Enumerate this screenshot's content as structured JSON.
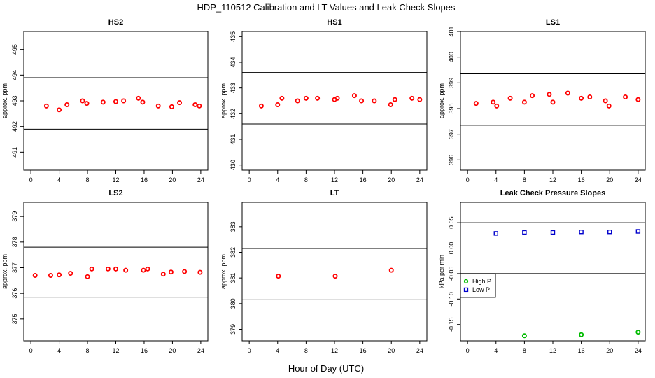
{
  "figure": {
    "title": "HDP_110512  Calibration and LT Values and Leak Check Slopes",
    "xlabel": "Hour of Day (UTC)"
  },
  "colors": {
    "points": "#ff0000",
    "high_p": "#00bb00",
    "low_p": "#0000cc",
    "frame": "#000000"
  },
  "chart_data": [
    {
      "type": "scatter",
      "title": "HS2",
      "ylabel": "approx. ppm",
      "xlim": [
        -1,
        25
      ],
      "ylim": [
        490.3,
        495.7
      ],
      "xticks": [
        0,
        4,
        8,
        12,
        16,
        20,
        24
      ],
      "yticks": [
        491,
        492,
        493,
        494,
        495
      ],
      "hlines": [
        493.9,
        491.9
      ],
      "series": [
        {
          "marker": "circle",
          "color": "#ff0000",
          "x": [
            2.2,
            4.0,
            5.1,
            7.3,
            7.9,
            10.2,
            12.0,
            13.1,
            15.2,
            15.8,
            18.0,
            19.9,
            21.0,
            23.2,
            23.8
          ],
          "y": [
            492.8,
            492.65,
            492.85,
            493.0,
            492.9,
            492.95,
            492.97,
            493.0,
            493.1,
            492.95,
            492.8,
            492.77,
            492.93,
            492.85,
            492.8
          ]
        }
      ]
    },
    {
      "type": "scatter",
      "title": "HS1",
      "ylabel": "approx. ppm",
      "xlim": [
        -1,
        25
      ],
      "ylim": [
        429.8,
        435.2
      ],
      "xticks": [
        0,
        4,
        8,
        12,
        16,
        20,
        24
      ],
      "yticks": [
        430,
        431,
        432,
        433,
        434,
        435
      ],
      "hlines": [
        433.6,
        431.6
      ],
      "series": [
        {
          "marker": "circle",
          "color": "#ff0000",
          "x": [
            1.7,
            4.0,
            4.6,
            6.8,
            8.0,
            9.6,
            12.0,
            12.4,
            14.8,
            15.8,
            17.6,
            19.9,
            20.5,
            22.9,
            24.0
          ],
          "y": [
            432.3,
            432.35,
            432.6,
            432.5,
            432.6,
            432.6,
            432.55,
            432.6,
            432.7,
            432.5,
            432.5,
            432.35,
            432.55,
            432.6,
            432.55
          ]
        }
      ]
    },
    {
      "type": "scatter",
      "title": "LS1",
      "ylabel": "approx. ppm",
      "xlim": [
        -1,
        25
      ],
      "ylim": [
        395.6,
        401.0
      ],
      "xticks": [
        0,
        4,
        8,
        12,
        16,
        20,
        24
      ],
      "yticks": [
        396,
        397,
        398,
        399,
        400,
        401
      ],
      "hlines": [
        399.35,
        397.35
      ],
      "series": [
        {
          "marker": "circle",
          "color": "#ff0000",
          "x": [
            1.2,
            3.6,
            4.1,
            6.0,
            8.0,
            9.1,
            11.5,
            12.0,
            14.1,
            16.0,
            17.2,
            19.4,
            19.9,
            22.2,
            24.0
          ],
          "y": [
            398.2,
            398.25,
            398.1,
            398.4,
            398.25,
            398.5,
            398.55,
            398.25,
            398.6,
            398.4,
            398.45,
            398.3,
            398.1,
            398.45,
            398.35
          ]
        }
      ]
    },
    {
      "type": "scatter",
      "title": "LS2",
      "ylabel": "approx. ppm",
      "xlim": [
        -1,
        25
      ],
      "ylim": [
        374.15,
        379.55
      ],
      "xticks": [
        0,
        4,
        8,
        12,
        16,
        20,
        24
      ],
      "yticks": [
        375,
        376,
        377,
        378,
        379
      ],
      "hlines": [
        377.8,
        375.85
      ],
      "series": [
        {
          "marker": "circle",
          "color": "#ff0000",
          "x": [
            0.6,
            2.8,
            4.0,
            5.6,
            8.0,
            8.6,
            10.9,
            12.0,
            13.4,
            15.9,
            16.5,
            18.7,
            19.8,
            21.7,
            23.9
          ],
          "y": [
            376.7,
            376.7,
            376.72,
            376.78,
            376.65,
            376.95,
            376.95,
            376.95,
            376.9,
            376.9,
            376.95,
            376.75,
            376.83,
            376.85,
            376.82
          ]
        }
      ]
    },
    {
      "type": "scatter",
      "title": "LT",
      "ylabel": "approx. ppm",
      "xlim": [
        -1,
        25
      ],
      "ylim": [
        378.55,
        383.95
      ],
      "xticks": [
        0,
        4,
        8,
        12,
        16,
        20,
        24
      ],
      "yticks": [
        379,
        380,
        381,
        382,
        383
      ],
      "hlines": [
        382.15,
        380.15
      ],
      "series": [
        {
          "marker": "circle",
          "color": "#ff0000",
          "x": [
            4.1,
            12.1,
            20.0
          ],
          "y": [
            381.07,
            381.07,
            381.3
          ]
        }
      ]
    },
    {
      "type": "scatter",
      "title": "Leak Check Pressure Slopes",
      "ylabel": "kPa per min",
      "xlim": [
        -1,
        25
      ],
      "ylim": [
        -0.182,
        0.09
      ],
      "xticks": [
        0,
        4,
        8,
        12,
        16,
        20,
        24
      ],
      "yticks": [
        -0.15,
        -0.1,
        -0.05,
        0.0,
        0.05
      ],
      "ytick_labels": [
        "-0.15",
        "-0.10",
        "-0.05",
        "0.00",
        "0.05"
      ],
      "hlines": [
        0.05,
        -0.05
      ],
      "legend": {
        "position": "left",
        "entries": [
          {
            "label": "High P",
            "color": "#00bb00"
          },
          {
            "label": "Low P",
            "color": "#0000cc"
          }
        ]
      },
      "series": [
        {
          "name": "High P",
          "marker": "circle",
          "color": "#00bb00",
          "x": [
            8.0,
            16.0,
            24.0
          ],
          "y": [
            -0.172,
            -0.17,
            -0.165
          ]
        },
        {
          "name": "Low P",
          "marker": "square",
          "color": "#0000cc",
          "x": [
            4.0,
            8.0,
            12.0,
            16.0,
            20.0,
            24.0
          ],
          "y": [
            0.029,
            0.031,
            0.031,
            0.032,
            0.032,
            0.033
          ]
        }
      ]
    }
  ]
}
